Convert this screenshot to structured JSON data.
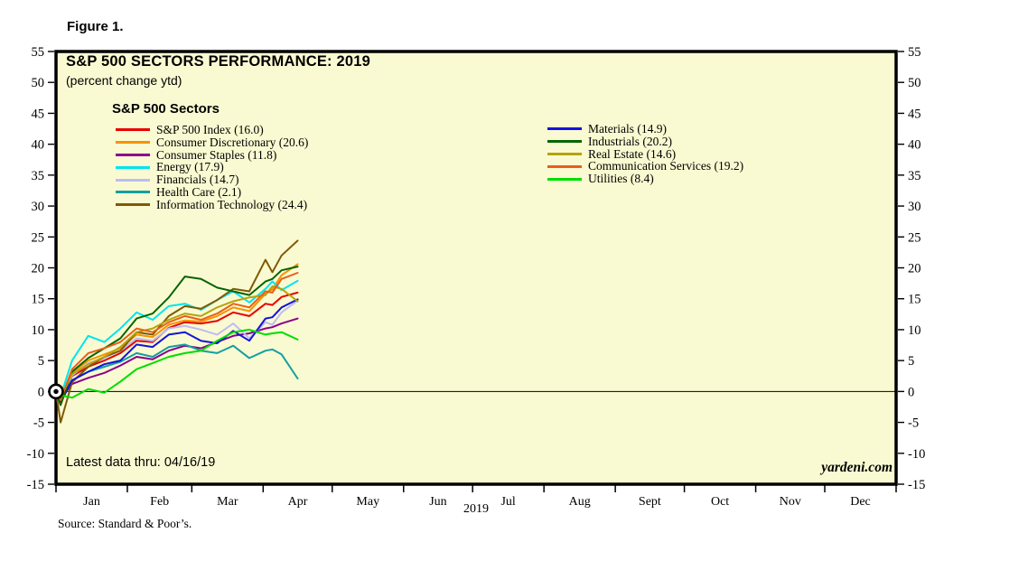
{
  "figure_label": "Figure 1.",
  "chart": {
    "title": "S&P 500 SECTORS PERFORMANCE: 2019",
    "subtitle": "(percent change ytd)",
    "legend_title": "S&P 500 Sectors",
    "latest_data_note": "Latest data thru: 04/16/19",
    "watermark": "yardeni.com",
    "source_note": "Source: Standard & Poor’s.",
    "background_color": "#FAFAD2",
    "axis_color": "#000000"
  },
  "chart_data": {
    "type": "line",
    "title": "S&P 500 SECTORS PERFORMANCE: 2019",
    "subtitle": "(percent change ytd)",
    "xlabel": "2019",
    "ylabel": "percent change ytd",
    "ylim": [
      -15,
      55
    ],
    "ytick_step": 5,
    "grid": false,
    "legend_position": "top-inside-two-columns",
    "months": [
      "Jan",
      "Feb",
      "Mar",
      "Apr",
      "May",
      "Jun",
      "Jul",
      "Aug",
      "Sept",
      "Oct",
      "Nov",
      "Dec"
    ],
    "x_days": [
      1,
      3,
      8,
      15,
      22,
      29,
      36,
      43,
      50,
      57,
      64,
      71,
      78,
      85,
      92,
      95,
      99,
      106
    ],
    "x_domain_days": [
      1,
      365
    ],
    "legend_columns": [
      7,
      5
    ],
    "series": [
      {
        "name": "S&P 500 Index",
        "ytd": 16.0,
        "label": "S&P 500 Index (16.0)",
        "color": "#E80000",
        "values": [
          0,
          -2.0,
          2.5,
          4.0,
          5.0,
          6.2,
          8.2,
          8.0,
          10.3,
          11.2,
          11.0,
          11.4,
          12.8,
          12.2,
          14.2,
          14.0,
          15.3,
          16.0
        ]
      },
      {
        "name": "Consumer Discretionary",
        "ytd": 20.6,
        "label": "Consumer Discretionary (20.6)",
        "color": "#F59300",
        "values": [
          0,
          -1.5,
          3.0,
          5.0,
          6.0,
          7.0,
          9.2,
          8.8,
          10.8,
          11.5,
          11.3,
          12.2,
          13.6,
          13.0,
          15.8,
          16.5,
          18.8,
          20.6
        ]
      },
      {
        "name": "Consumer Staples",
        "ytd": 11.8,
        "label": "Consumer Staples (11.8)",
        "color": "#8B008B",
        "values": [
          0,
          -1.2,
          1.2,
          2.2,
          3.0,
          4.2,
          5.6,
          5.2,
          6.6,
          7.4,
          7.0,
          8.0,
          9.0,
          9.4,
          10.2,
          10.4,
          11.0,
          11.8
        ]
      },
      {
        "name": "Energy",
        "ytd": 17.9,
        "label": "Energy (17.9)",
        "color": "#00E5EE",
        "values": [
          0,
          -0.8,
          5.0,
          9.0,
          8.0,
          10.2,
          12.8,
          11.6,
          13.8,
          14.2,
          13.2,
          14.8,
          16.2,
          14.4,
          16.6,
          17.8,
          16.4,
          17.9
        ]
      },
      {
        "name": "Financials",
        "ytd": 14.7,
        "label": "Financials (14.7)",
        "color": "#BDBCF2",
        "values": [
          0,
          -1.6,
          2.6,
          4.6,
          5.4,
          6.6,
          8.6,
          8.2,
          10.2,
          10.6,
          10.0,
          9.2,
          11.0,
          8.6,
          11.2,
          10.8,
          12.8,
          14.7
        ]
      },
      {
        "name": "Health Care",
        "ytd": 2.1,
        "label": "Health Care (2.1)",
        "color": "#12A0A0",
        "values": [
          0,
          -1.2,
          1.8,
          3.2,
          4.0,
          4.8,
          6.2,
          5.6,
          7.2,
          7.6,
          6.6,
          6.2,
          7.4,
          5.4,
          6.6,
          6.8,
          6.0,
          2.1
        ]
      },
      {
        "name": "Information Technology",
        "ytd": 24.4,
        "label": "Information Technology (24.4)",
        "color": "#7E5A05",
        "values": [
          0,
          -5.0,
          1.5,
          4.0,
          5.6,
          6.6,
          9.6,
          9.2,
          12.2,
          13.8,
          13.4,
          14.8,
          16.6,
          16.2,
          21.3,
          19.3,
          22.0,
          24.4
        ]
      },
      {
        "name": "Materials",
        "ytd": 14.9,
        "label": "Materials (14.9)",
        "color": "#1212DD",
        "values": [
          0,
          -1.8,
          1.8,
          3.2,
          4.4,
          5.0,
          7.6,
          7.2,
          9.2,
          9.6,
          8.2,
          7.8,
          9.8,
          8.2,
          11.8,
          12.0,
          13.6,
          14.9
        ]
      },
      {
        "name": "Industrials",
        "ytd": 20.2,
        "label": "Industrials (20.2)",
        "color": "#056405",
        "values": [
          0,
          -2.2,
          3.2,
          5.4,
          7.0,
          8.6,
          11.8,
          12.6,
          15.2,
          18.6,
          18.2,
          16.8,
          16.2,
          15.6,
          17.8,
          18.2,
          19.6,
          20.2
        ]
      },
      {
        "name": "Real Estate",
        "ytd": 14.6,
        "label": "Real Estate (14.6)",
        "color": "#B5A30B",
        "values": [
          0,
          -1.0,
          2.8,
          4.4,
          5.6,
          7.2,
          9.6,
          10.2,
          11.6,
          12.6,
          12.2,
          13.6,
          14.6,
          15.2,
          15.6,
          17.0,
          16.6,
          14.6
        ]
      },
      {
        "name": "Communication Services",
        "ytd": 19.2,
        "label": "Communication Services (19.2)",
        "color": "#EA5E18",
        "values": [
          0,
          -1.4,
          3.6,
          6.2,
          7.0,
          8.0,
          10.2,
          9.6,
          11.2,
          12.2,
          11.6,
          12.6,
          14.2,
          13.6,
          16.2,
          16.0,
          18.2,
          19.2
        ]
      },
      {
        "name": "Utilities",
        "ytd": 8.4,
        "label": "Utilities (8.4)",
        "color": "#00DD00",
        "values": [
          0,
          -0.6,
          -1.0,
          0.4,
          -0.2,
          1.6,
          3.6,
          4.6,
          5.6,
          6.2,
          6.6,
          8.2,
          9.6,
          10.0,
          9.2,
          9.4,
          9.6,
          8.4
        ]
      }
    ]
  }
}
